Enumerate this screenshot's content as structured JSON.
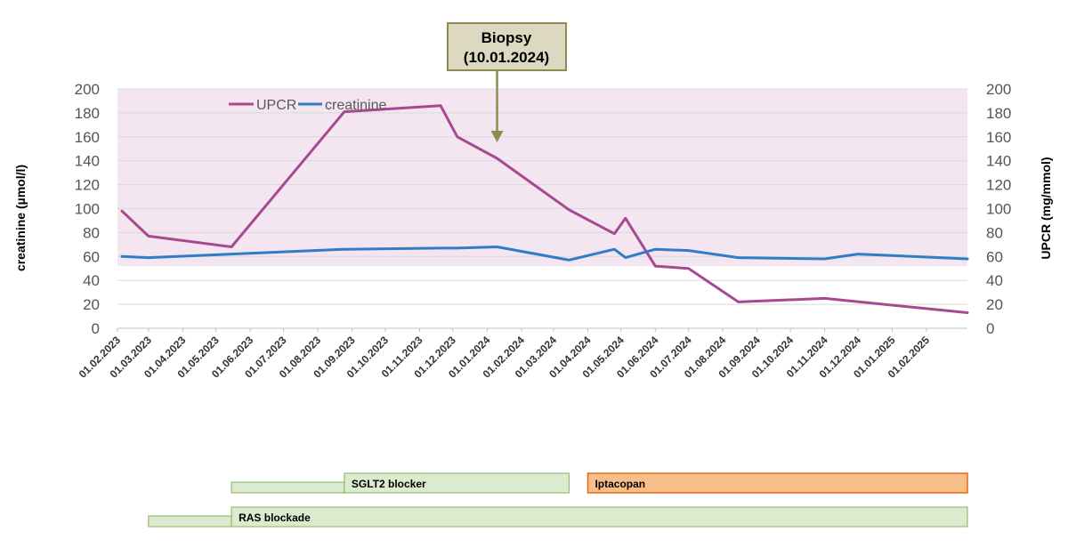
{
  "chart_data": {
    "type": "line",
    "title": "",
    "x_type": "date",
    "xlim": [
      "2023-02-01",
      "2025-03-10"
    ],
    "x_tick_labels": [
      "01.02.2023",
      "01.03.2023",
      "01.04.2023",
      "01.05.2023",
      "01.06.2023",
      "01.07.2023",
      "01.08.2023",
      "01.09.2023",
      "01.10.2023",
      "01.11.2023",
      "01.12.2023",
      "01.01.2024",
      "01.02.2024",
      "01.03.2024",
      "01.04.2024",
      "01.05.2024",
      "01.06.2024",
      "01.07.2024",
      "01.08.2024",
      "01.09.2024",
      "01.10.2024",
      "01.11.2024",
      "01.12.2024",
      "01.01.2025",
      "01.02.2025"
    ],
    "x_tick_dates": [
      "2023-02-01",
      "2023-03-01",
      "2023-04-01",
      "2023-05-01",
      "2023-06-01",
      "2023-07-01",
      "2023-08-01",
      "2023-09-01",
      "2023-10-01",
      "2023-11-01",
      "2023-12-01",
      "2024-01-01",
      "2024-02-01",
      "2024-03-01",
      "2024-04-01",
      "2024-05-01",
      "2024-06-01",
      "2024-07-01",
      "2024-08-01",
      "2024-09-01",
      "2024-10-01",
      "2024-11-01",
      "2024-12-01",
      "2025-01-01",
      "2025-02-01"
    ],
    "y_left": {
      "label": "creatinine (µmol/l)",
      "range": [
        0,
        200
      ],
      "ticks": [
        "0",
        "20",
        "40",
        "60",
        "80",
        "100",
        "120",
        "140",
        "160",
        "180",
        "200"
      ]
    },
    "y_right": {
      "label": "UPCR (mg/mmol)",
      "range": [
        0,
        200
      ],
      "ticks": [
        "0",
        "20",
        "40",
        "60",
        "80",
        "100",
        "120",
        "140",
        "160",
        "180",
        "200"
      ]
    },
    "grid": true,
    "legend_position": "top-left",
    "shaded_band": {
      "from": 52,
      "to": 200,
      "color": "#f3e6f1"
    },
    "series": [
      {
        "name": "UPCR",
        "color": "#a8488f",
        "axis": "right",
        "points": [
          [
            "2023-02-05",
            98
          ],
          [
            "2023-03-01",
            77
          ],
          [
            "2023-05-15",
            68
          ],
          [
            "2023-08-25",
            181
          ],
          [
            "2023-11-20",
            186
          ],
          [
            "2023-12-05",
            160
          ],
          [
            "2024-01-10",
            142
          ],
          [
            "2024-03-15",
            99
          ],
          [
            "2024-04-25",
            79
          ],
          [
            "2024-05-05",
            92
          ],
          [
            "2024-06-01",
            52
          ],
          [
            "2024-07-01",
            50
          ],
          [
            "2024-08-15",
            22
          ],
          [
            "2024-11-01",
            25
          ],
          [
            "2025-03-10",
            13
          ]
        ]
      },
      {
        "name": "creatinine",
        "color": "#2f7cc7",
        "axis": "left",
        "points": [
          [
            "2023-02-05",
            60
          ],
          [
            "2023-03-01",
            59
          ],
          [
            "2023-05-15",
            62
          ],
          [
            "2023-08-25",
            66
          ],
          [
            "2023-11-20",
            67
          ],
          [
            "2023-12-05",
            67
          ],
          [
            "2024-01-10",
            68
          ],
          [
            "2024-03-15",
            57
          ],
          [
            "2024-04-25",
            66
          ],
          [
            "2024-05-05",
            59
          ],
          [
            "2024-06-01",
            66
          ],
          [
            "2024-07-01",
            65
          ],
          [
            "2024-08-15",
            59
          ],
          [
            "2024-11-01",
            58
          ],
          [
            "2024-12-01",
            62
          ],
          [
            "2025-03-10",
            58
          ]
        ]
      }
    ],
    "annotation": {
      "line1": "Biopsy",
      "line2": "(10.01.2024)",
      "date": "2024-01-10"
    },
    "treatment_bars": [
      {
        "label": "SGLT2 blocker",
        "lead_start": "2023-05-15",
        "start": "2023-08-25",
        "end": "2024-03-15",
        "fill": "#dcebd0",
        "stroke": "#82b45a"
      },
      {
        "label": "Iptacopan",
        "lead_start": null,
        "start": "2024-04-01",
        "end": "2025-03-10",
        "fill": "#f8be8a",
        "stroke": "#e26a16"
      },
      {
        "label": "RAS blockade",
        "lead_start": "2023-03-01",
        "start": "2023-05-15",
        "end": "2025-03-10",
        "fill": "#dcebd0",
        "stroke": "#82b45a"
      }
    ]
  }
}
